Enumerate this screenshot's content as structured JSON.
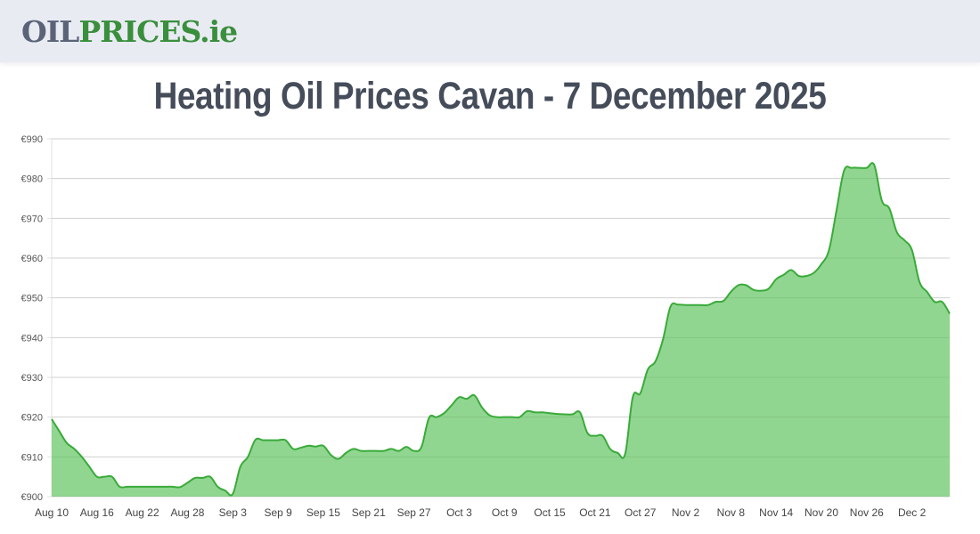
{
  "header": {
    "logo_part1": "OIL",
    "logo_part2": "PRICES.ie"
  },
  "page": {
    "title": "Heating Oil Prices Cavan - 7 December 2025"
  },
  "colors": {
    "line": "#3aaa3a",
    "fill": "#90d690",
    "grid": "#e2e2e2",
    "title": "#454c5a",
    "logo_gray": "#5a6377",
    "logo_green": "#3a8f3c"
  },
  "chart_data": {
    "type": "area",
    "title": "Heating Oil Prices Cavan - 7 December 2025",
    "xlabel": "",
    "ylabel": "",
    "ylim": [
      900,
      990
    ],
    "yticks": [
      "€900",
      "€910",
      "€920",
      "€930",
      "€940",
      "€950",
      "€960",
      "€970",
      "€980",
      "€990"
    ],
    "xticks": [
      "Aug 10",
      "Aug 16",
      "Aug 22",
      "Aug 28",
      "Sep 3",
      "Sep 9",
      "Sep 15",
      "Sep 21",
      "Sep 27",
      "Oct 3",
      "Oct 9",
      "Oct 15",
      "Oct 21",
      "Oct 27",
      "Nov 2",
      "Nov 8",
      "Nov 14",
      "Nov 20",
      "Nov 26",
      "Dec 2"
    ],
    "grid": true,
    "legend": "none",
    "start_date": "Aug 10",
    "end_date": "Dec 7",
    "series": [
      {
        "name": "Heating oil price (Cavan)",
        "x_days": [
          0,
          1,
          2,
          3,
          4,
          5,
          6,
          7,
          8,
          9,
          10,
          11,
          12,
          13,
          14,
          15,
          16,
          17,
          18,
          19,
          20,
          21,
          22,
          23,
          24,
          25,
          26,
          27,
          28,
          29,
          30,
          31,
          32,
          33,
          34,
          35,
          36,
          37,
          38,
          39,
          40,
          41,
          42,
          43,
          44,
          45,
          46,
          47,
          48,
          49,
          50,
          51,
          52,
          53,
          54,
          55,
          56,
          57,
          58,
          59,
          60,
          61,
          62,
          63,
          64,
          65,
          66,
          67,
          68,
          69,
          70,
          71,
          72,
          73,
          74,
          75,
          76,
          77,
          78,
          79,
          80,
          81,
          82,
          83,
          84,
          85,
          86,
          87,
          88,
          89,
          90,
          91,
          92,
          93,
          94,
          95,
          96,
          97,
          98,
          99,
          100,
          101,
          102,
          103,
          104,
          105,
          106,
          107,
          108,
          109,
          110,
          111,
          112,
          113,
          114,
          115,
          116,
          117,
          118,
          119
        ],
        "values": [
          919.5,
          916.5,
          913.5,
          912,
          910,
          907.5,
          905,
          905,
          905,
          902.5,
          902.5,
          902.5,
          902.5,
          902.5,
          902.5,
          902.5,
          902.5,
          902.4,
          903.5,
          904.7,
          904.7,
          905,
          902.5,
          901.5,
          900.7,
          907.5,
          910,
          914.3,
          914.2,
          914.2,
          914.2,
          914.2,
          912,
          912.3,
          912.8,
          912.6,
          912.8,
          910.5,
          909.5,
          911,
          912,
          911.5,
          911.5,
          911.5,
          911.5,
          912,
          911.5,
          912.5,
          911.5,
          912.5,
          919.8,
          920,
          921,
          923,
          925,
          924.6,
          925.5,
          922.5,
          920.5,
          920,
          920,
          920,
          920,
          921.5,
          921.2,
          921.2,
          921,
          920.8,
          920.7,
          920.7,
          921.2,
          916,
          915.3,
          915.3,
          912,
          911,
          910.8,
          925,
          926,
          932,
          934,
          939.5,
          947.8,
          948.3,
          948.2,
          948.2,
          948.2,
          948.2,
          949,
          949.2,
          951.5,
          953.2,
          953.2,
          952,
          951.8,
          952.3,
          954.7,
          955.8,
          957,
          955.5,
          955.5,
          956.3,
          958.5,
          962,
          972,
          982,
          982.7,
          982.7,
          982.7,
          983.4,
          974.5,
          972.5,
          966.5,
          964.5,
          962,
          954,
          951.5,
          949,
          949,
          946,
          946
        ]
      }
    ]
  }
}
